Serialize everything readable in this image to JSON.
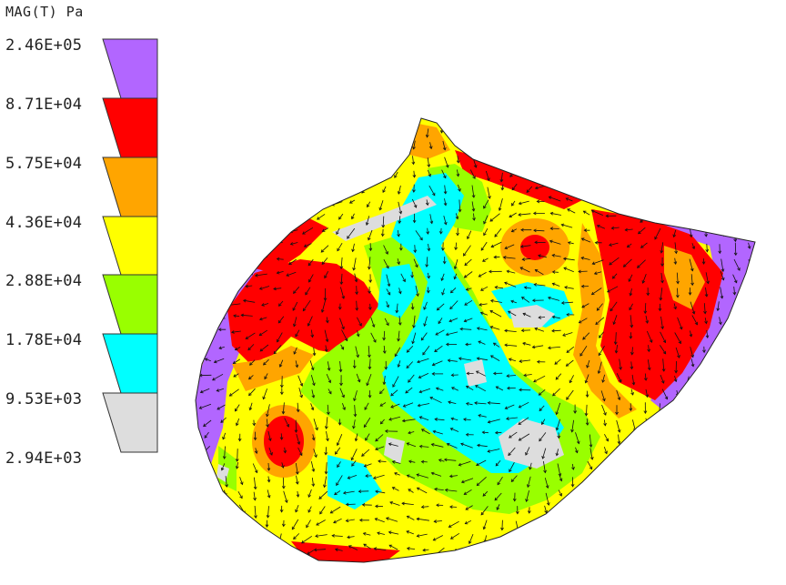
{
  "legend": {
    "title": "MAG(T) Pa",
    "levels": [
      {
        "label": "2.46E+05",
        "color": "#b266ff"
      },
      {
        "label": "8.71E+04",
        "color": "#ff0000"
      },
      {
        "label": "5.75E+04",
        "color": "#ffa500"
      },
      {
        "label": "4.36E+04",
        "color": "#ffff00"
      },
      {
        "label": "2.88E+04",
        "color": "#99ff00"
      },
      {
        "label": "1.78E+04",
        "color": "#00ffff"
      },
      {
        "label": "9.53E+03",
        "color": "#dddddd"
      },
      {
        "label": "2.94E+03",
        "color": ""
      }
    ]
  }
}
